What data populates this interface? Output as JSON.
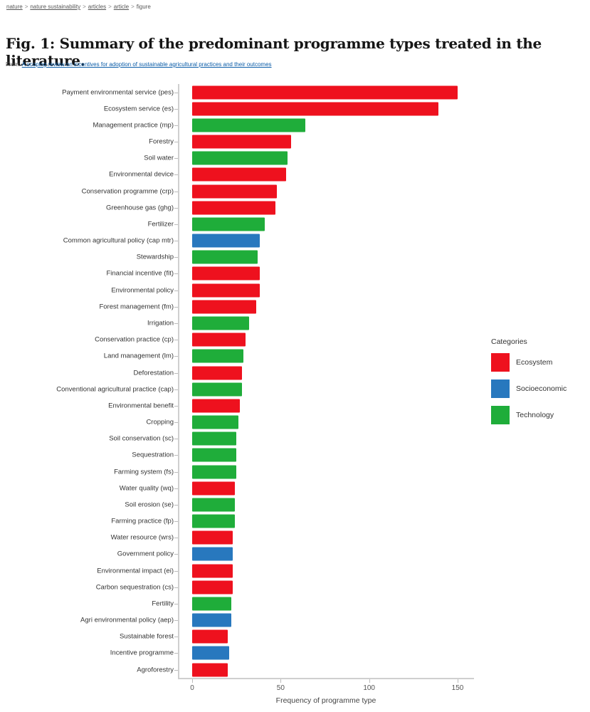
{
  "breadcrumb": {
    "separator": ">",
    "items": [
      {
        "label": "nature",
        "current": false
      },
      {
        "label": "nature sustainability",
        "current": false
      },
      {
        "label": "articles",
        "current": false
      },
      {
        "label": "article",
        "current": false
      },
      {
        "label": "figure",
        "current": true
      }
    ]
  },
  "title": "Fig. 1: Summary of the predominant programme types treated in the literature.",
  "from": {
    "prefix": "From:",
    "link": "A scoping review on incentives for adoption of sustainable agricultural practices and their outcomes"
  },
  "colors": {
    "ecosystem": "#ee111e",
    "socioeconomic": "#2878be",
    "technology": "#1fad3a",
    "axis": "#cfcfcf"
  },
  "legend": {
    "title": "Categories",
    "items": [
      {
        "label": "Ecosystem",
        "category": "ecosystem"
      },
      {
        "label": "Socioeconomic",
        "category": "socioeconomic"
      },
      {
        "label": "Technology",
        "category": "technology"
      }
    ]
  },
  "chart_data": {
    "type": "bar",
    "orientation": "horizontal",
    "title": "",
    "xlabel": "Frequency of programme type",
    "ylabel": "",
    "xlim": [
      0,
      157
    ],
    "x_ticks": [
      0,
      50,
      100,
      150
    ],
    "grid": false,
    "legend_position": "right",
    "legend_title": "Categories",
    "categories": [
      "Payment environmental service (pes)",
      "Ecosystem service (es)",
      "Management practice (mp)",
      "Forestry",
      "Soil water",
      "Environmental device",
      "Conservation programme (crp)",
      "Greenhouse gas (ghg)",
      "Fertilizer",
      "Common agricultural policy (cap mtr)",
      "Stewardship",
      "Financial incentive (fit)",
      "Environmental policy",
      "Forest management (fm)",
      "Irrigation",
      "Conservation practice (cp)",
      "Land management (lm)",
      "Deforestation",
      "Conventional agricultural practice (cap)",
      "Environmental benefit",
      "Cropping",
      "Soil conservation (sc)",
      "Sequestration",
      "Farming system (fs)",
      "Water quality (wq)",
      "Soil erosion (se)",
      "Farming practice (fp)",
      "Water resource (wrs)",
      "Government policy",
      "Environmental impact (ei)",
      "Carbon sequestration (cs)",
      "Fertility",
      "Agri environmental policy (aep)",
      "Sustainable forest",
      "Incentive programme",
      "Agroforestry"
    ],
    "values": [
      150,
      139,
      64,
      56,
      54,
      53,
      48,
      47,
      41,
      38,
      37,
      38,
      38,
      36,
      32,
      30,
      29,
      28,
      28,
      27,
      26,
      25,
      25,
      25,
      24,
      24,
      24,
      23,
      23,
      23,
      23,
      22,
      22,
      20,
      21,
      20
    ],
    "bar_category": [
      "ecosystem",
      "ecosystem",
      "technology",
      "ecosystem",
      "technology",
      "ecosystem",
      "ecosystem",
      "ecosystem",
      "technology",
      "socioeconomic",
      "technology",
      "ecosystem",
      "ecosystem",
      "ecosystem",
      "technology",
      "ecosystem",
      "technology",
      "ecosystem",
      "technology",
      "ecosystem",
      "technology",
      "technology",
      "technology",
      "technology",
      "ecosystem",
      "technology",
      "technology",
      "ecosystem",
      "socioeconomic",
      "ecosystem",
      "ecosystem",
      "technology",
      "socioeconomic",
      "ecosystem",
      "socioeconomic",
      "ecosystem"
    ]
  }
}
